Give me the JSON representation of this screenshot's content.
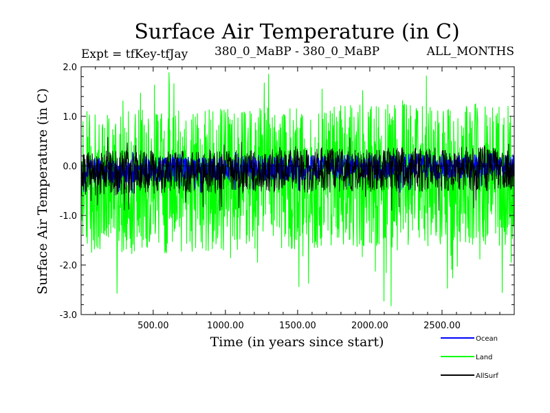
{
  "chart_data": {
    "type": "line",
    "title": "Surface Air Temperature (in C)",
    "subtitle_left": "Expt = tfKey-tfJay",
    "subtitle_center": "380_0_MaBP - 380_0_MaBP",
    "subtitle_right": "ALL_MONTHS",
    "xlabel": "Time (in years since start)",
    "ylabel": "Surface Air Temperature (in C)",
    "xlim": [
      1,
      3000
    ],
    "ylim": [
      -3.0,
      2.0
    ],
    "x_ticks": [
      500,
      1000,
      1500,
      2000,
      2500
    ],
    "x_tick_labels": [
      "500.00",
      "1000.00",
      "1500.00",
      "2000.00",
      "2500.00"
    ],
    "y_ticks": [
      -3.0,
      -2.0,
      -1.0,
      0.0,
      1.0,
      2.0
    ],
    "y_tick_labels": [
      "-3.0",
      "-2.0",
      "-1.0",
      "0.0",
      "1.0",
      "2.0"
    ],
    "grid": false,
    "legend_position": "bottom-right, below plot",
    "reference_line": 0.0,
    "series": [
      {
        "name": "Ocean",
        "color": "#0000ff",
        "typical_range": [
          -0.35,
          0.15
        ],
        "extreme_range": [
          -0.55,
          0.28
        ],
        "trend_start": -0.1,
        "trend_end": 0.02
      },
      {
        "name": "Land",
        "color": "#00ff00",
        "typical_range": [
          -1.8,
          1.1
        ],
        "extreme_range": [
          -2.85,
          1.9
        ],
        "trend_start": -0.35,
        "trend_end": -0.15
      },
      {
        "name": "AllSurf",
        "color": "#000000",
        "typical_range": [
          -0.6,
          0.3
        ],
        "extreme_range": [
          -0.9,
          0.6
        ],
        "trend_start": -0.15,
        "trend_end": -0.05
      }
    ]
  }
}
